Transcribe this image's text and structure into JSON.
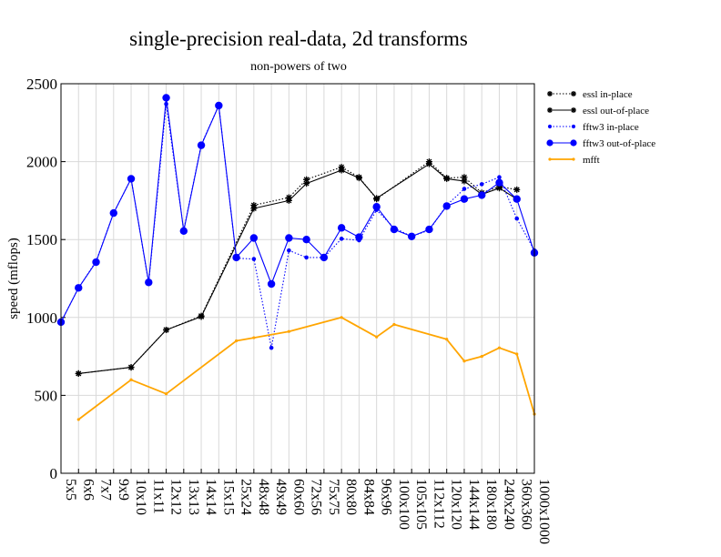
{
  "chart_data": {
    "type": "line",
    "title": "single-precision real-data, 2d transforms",
    "subtitle": "non-powers of two",
    "ylabel": "speed (mflops)",
    "xlabel": "",
    "ylim": [
      0,
      2500
    ],
    "yticks": [
      0,
      500,
      1000,
      1500,
      2000,
      2500
    ],
    "grid": true,
    "legend_position": "top-right, outside plot",
    "categories": [
      "5x5",
      "6x6",
      "7x7",
      "9x9",
      "10x10",
      "11x11",
      "12x12",
      "13x13",
      "14x14",
      "15x15",
      "25x24",
      "48x48",
      "49x49",
      "60x60",
      "72x56",
      "75x75",
      "80x80",
      "84x84",
      "96x96",
      "100x100",
      "105x105",
      "112x112",
      "120x120",
      "144x144",
      "180x180",
      "240x240",
      "360x360",
      "1000x1000"
    ],
    "series": [
      {
        "name": "essl in-place",
        "color": "#000000",
        "style": "dotted",
        "marker": "star",
        "values": [
          null,
          640,
          null,
          null,
          680,
          null,
          920,
          null,
          1010,
          null,
          null,
          1720,
          null,
          1770,
          1885,
          null,
          1965,
          1900,
          1760,
          null,
          null,
          2000,
          1895,
          1900,
          1800,
          1840,
          1820,
          null
        ]
      },
      {
        "name": "essl out-of-place",
        "color": "#000000",
        "style": "solid",
        "marker": "star",
        "values": [
          null,
          640,
          null,
          null,
          680,
          null,
          920,
          null,
          1005,
          null,
          null,
          1700,
          null,
          1750,
          1860,
          null,
          1945,
          1895,
          1765,
          null,
          null,
          1985,
          1890,
          1875,
          1790,
          1830,
          1760,
          null
        ]
      },
      {
        "name": "fftw3 in-place",
        "color": "#0000ff",
        "style": "dotted",
        "marker": "small-dot",
        "values": [
          970,
          1190,
          1360,
          1670,
          1890,
          1220,
          2370,
          1560,
          2110,
          2360,
          1380,
          1375,
          805,
          1430,
          1385,
          1385,
          1505,
          1495,
          1690,
          1575,
          1520,
          1560,
          1720,
          1825,
          1855,
          1900,
          1635,
          1430
        ]
      },
      {
        "name": "fftw3 out-of-place",
        "color": "#0000ff",
        "style": "solid",
        "marker": "large-dot",
        "values": [
          970,
          1190,
          1355,
          1670,
          1890,
          1225,
          2410,
          1555,
          2105,
          2360,
          1385,
          1510,
          1215,
          1510,
          1500,
          1385,
          1575,
          1515,
          1710,
          1565,
          1520,
          1565,
          1715,
          1760,
          1785,
          1865,
          1760,
          1415
        ]
      },
      {
        "name": "mfft",
        "color": "#ffa500",
        "style": "solid",
        "marker": "tiny-dot",
        "values": [
          null,
          345,
          null,
          null,
          600,
          null,
          510,
          null,
          null,
          null,
          850,
          870,
          null,
          910,
          null,
          null,
          1000,
          null,
          875,
          955,
          null,
          null,
          860,
          720,
          750,
          805,
          765,
          380
        ]
      }
    ]
  }
}
